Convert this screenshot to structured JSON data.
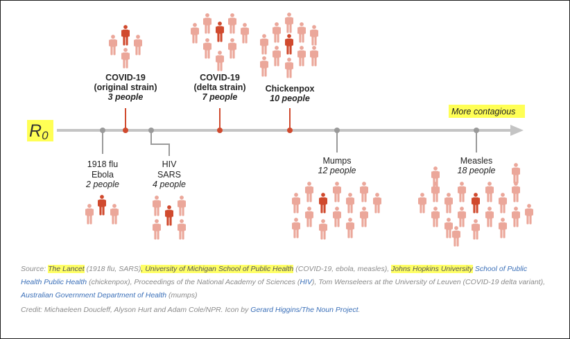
{
  "axis": {
    "symbol": "R",
    "subscript": "0",
    "direction_label": "More contagious",
    "color_axis": "#c4c4c4",
    "color_highlight": "#ffff55"
  },
  "colors": {
    "person_light": "#eba79a",
    "person_dark": "#d04a2e",
    "marker_gray": "#9a9a9a"
  },
  "icon": "person-icon",
  "diseases": [
    {
      "id": "flu-ebola",
      "lines": [
        "1918 flu",
        "Ebola"
      ],
      "r0_label": "2 people",
      "r0": 2,
      "side": "below",
      "bold": false
    },
    {
      "id": "covid-original",
      "lines": [
        "COVID-19",
        "(original strain)"
      ],
      "r0_label": "3 people",
      "r0": 3,
      "side": "above",
      "bold": true
    },
    {
      "id": "hiv-sars",
      "lines": [
        "HIV",
        "SARS"
      ],
      "r0_label": "4 people",
      "r0": 4,
      "side": "below",
      "bold": false
    },
    {
      "id": "covid-delta",
      "lines": [
        "COVID-19",
        "(delta strain)"
      ],
      "r0_label": "7 people",
      "r0": 7,
      "side": "above",
      "bold": true
    },
    {
      "id": "chickenpox",
      "lines": [
        "Chickenpox"
      ],
      "r0_label": "10 people",
      "r0": 10,
      "side": "above",
      "bold": true
    },
    {
      "id": "mumps",
      "lines": [
        "Mumps"
      ],
      "r0_label": "12 people",
      "r0": 12,
      "side": "below",
      "bold": false
    },
    {
      "id": "measles",
      "lines": [
        "Measles"
      ],
      "r0_label": "18 people",
      "r0": 18,
      "side": "below",
      "bold": false
    }
  ],
  "footer": {
    "source_prefix": "Source: ",
    "lancet": "The Lancet",
    "t1": " (1918 flu, SARS)",
    "umich": ", University of Michigan School of Public Health",
    "t2": " (COVID-19, ebola, measles), ",
    "jhu": "Johns Hopkins University",
    "jhu_sph": " School of Public Health",
    "t3": " (chickenpox), Proceedings of the National Academy of Sciences (",
    "hiv": "HIV",
    "t4": "), Tom Wenseleers at the University of Leuven (COVID-19 delta variant),",
    "aus": "Australian Government Department of Health",
    "t5": " (mumps)",
    "credit_prefix": "Credit: Michaeleen Doucleff, Alyson Hurt and Adam Cole/NPR. Icon by ",
    "credit_link": "Gerard Higgins/The Noun Project",
    "credit_suffix": "."
  }
}
